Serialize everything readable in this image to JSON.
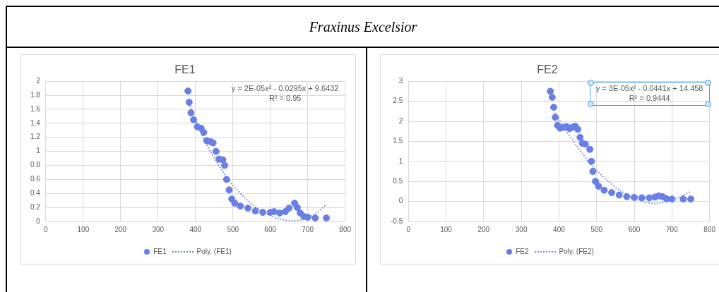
{
  "chart_data": [
    {
      "type": "other",
      "title": "Fraxinus Excelsior"
    },
    {
      "type": "scatter",
      "title": "FE1",
      "xlim": [
        0,
        800
      ],
      "xticks": [
        0,
        100,
        200,
        300,
        400,
        500,
        600,
        700,
        800
      ],
      "ylim": [
        0,
        2
      ],
      "yticks": [
        0,
        0.2,
        0.4,
        0.6,
        0.8,
        1,
        1.2,
        1.4,
        1.6,
        1.8,
        2
      ],
      "grid": true,
      "legend": "bottom",
      "annotations": [
        "y = 2E-05x² - 0.0295x + 9.6432",
        "R² = 0.95"
      ],
      "series": [
        {
          "name": "FE1",
          "type": "scatter",
          "marker": "circle",
          "color": "#6a7fe6",
          "x": [
            380,
            383,
            388,
            395,
            405,
            415,
            422,
            430,
            440,
            447,
            455,
            463,
            473,
            478,
            483,
            490,
            497,
            505,
            520,
            540,
            560,
            580,
            600,
            610,
            625,
            640,
            650,
            665,
            672,
            680,
            690,
            700,
            720,
            750
          ],
          "values": [
            1.86,
            1.7,
            1.55,
            1.45,
            1.35,
            1.33,
            1.27,
            1.15,
            1.14,
            1.12,
            1.0,
            0.89,
            0.88,
            0.8,
            0.6,
            0.45,
            0.32,
            0.26,
            0.22,
            0.19,
            0.15,
            0.13,
            0.13,
            0.14,
            0.12,
            0.14,
            0.19,
            0.26,
            0.2,
            0.12,
            0.07,
            0.06,
            0.05,
            0.05
          ]
        },
        {
          "name": "Poly. (FE1)",
          "type": "line",
          "marker": "none",
          "line_style": "dotted",
          "color": "#6b80e8",
          "x": [
            380,
            400,
            430,
            460,
            490,
            520,
            550,
            580,
            610,
            640,
            660,
            690,
            720,
            750
          ],
          "values": [
            1.72,
            1.45,
            1.1,
            0.82,
            0.58,
            0.4,
            0.25,
            0.14,
            0.06,
            0.02,
            0.01,
            0.04,
            0.11,
            0.24
          ]
        }
      ]
    },
    {
      "type": "scatter",
      "title": "FE2",
      "xlim": [
        0,
        800
      ],
      "xticks": [
        0,
        100,
        200,
        300,
        400,
        500,
        600,
        700,
        800
      ],
      "ylim": [
        -0.5,
        3
      ],
      "yticks": [
        -0.5,
        0,
        0.5,
        1,
        1.5,
        2,
        2.5,
        3
      ],
      "grid": true,
      "legend": "bottom",
      "annotations": [
        "y = 3E-05x² - 0.0441x + 14.458",
        "R² = 0.9444"
      ],
      "series": [
        {
          "name": "FE2",
          "type": "scatter",
          "marker": "circle",
          "color": "#6a7fe6",
          "x": [
            377,
            382,
            386,
            390,
            396,
            403,
            412,
            420,
            428,
            435,
            443,
            450,
            456,
            462,
            470,
            482,
            486,
            490,
            497,
            505,
            520,
            540,
            560,
            580,
            600,
            620,
            640,
            655,
            665,
            675,
            685,
            700,
            730,
            750
          ],
          "values": [
            2.75,
            2.6,
            2.35,
            2.1,
            1.9,
            1.83,
            1.85,
            1.87,
            1.82,
            1.85,
            1.88,
            1.8,
            1.6,
            1.45,
            1.43,
            1.3,
            1.0,
            0.75,
            0.5,
            0.38,
            0.28,
            0.22,
            0.16,
            0.12,
            0.1,
            0.09,
            0.09,
            0.11,
            0.14,
            0.12,
            0.07,
            0.06,
            0.06,
            0.06
          ]
        },
        {
          "name": "Poly. (FE2)",
          "type": "line",
          "marker": "none",
          "line_style": "dotted",
          "color": "#6b80e8",
          "x": [
            390,
            420,
            450,
            480,
            510,
            540,
            570,
            600,
            630,
            655,
            680,
            710,
            750
          ],
          "values": [
            2.2,
            1.75,
            1.35,
            0.98,
            0.68,
            0.43,
            0.23,
            0.08,
            -0.02,
            -0.05,
            -0.02,
            0.07,
            0.25
          ]
        }
      ]
    }
  ]
}
